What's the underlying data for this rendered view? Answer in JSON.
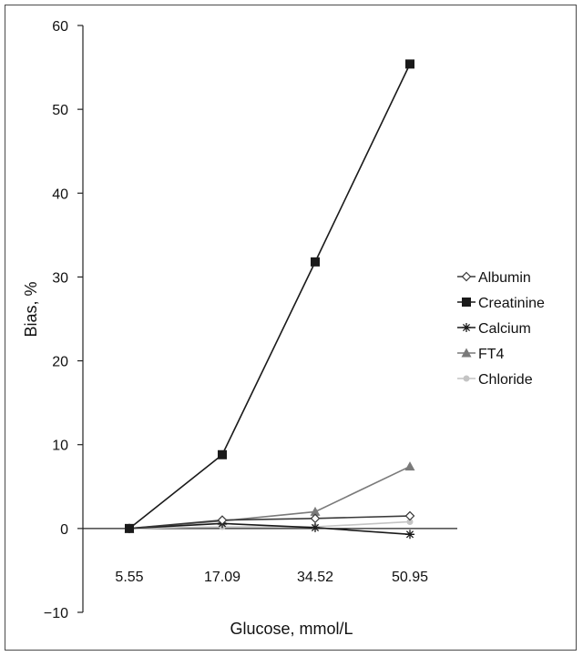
{
  "chart_data": {
    "type": "line",
    "title": "",
    "xlabel": "Glucose, mmol/L",
    "ylabel": "Bias, %",
    "categories": [
      "5.55",
      "17.09",
      "34.52",
      "50.95"
    ],
    "ylim": [
      -10,
      60
    ],
    "yticks": [
      "−10",
      "0",
      "10",
      "20",
      "30",
      "40",
      "50",
      "60"
    ],
    "ytick_values": [
      -10,
      0,
      10,
      20,
      30,
      40,
      50,
      60
    ],
    "grid": false,
    "legend_position": "right",
    "series": [
      {
        "name": "Albumin",
        "values": [
          0,
          1.0,
          1.2,
          1.5
        ],
        "color": "#3a3a3a",
        "marker": "diamond-open"
      },
      {
        "name": "Creatinine",
        "values": [
          0,
          8.8,
          31.8,
          55.4
        ],
        "color": "#1a1a1a",
        "marker": "square"
      },
      {
        "name": "Calcium",
        "values": [
          0,
          0.6,
          0.1,
          -0.7
        ],
        "color": "#1a1a1a",
        "marker": "asterisk"
      },
      {
        "name": "FT4",
        "values": [
          0,
          0.9,
          2.0,
          7.4
        ],
        "color": "#7a7a7a",
        "marker": "triangle"
      },
      {
        "name": "Chloride",
        "values": [
          0,
          0.2,
          0.2,
          0.8
        ],
        "color": "#c4c4c4",
        "marker": "circle"
      }
    ]
  }
}
